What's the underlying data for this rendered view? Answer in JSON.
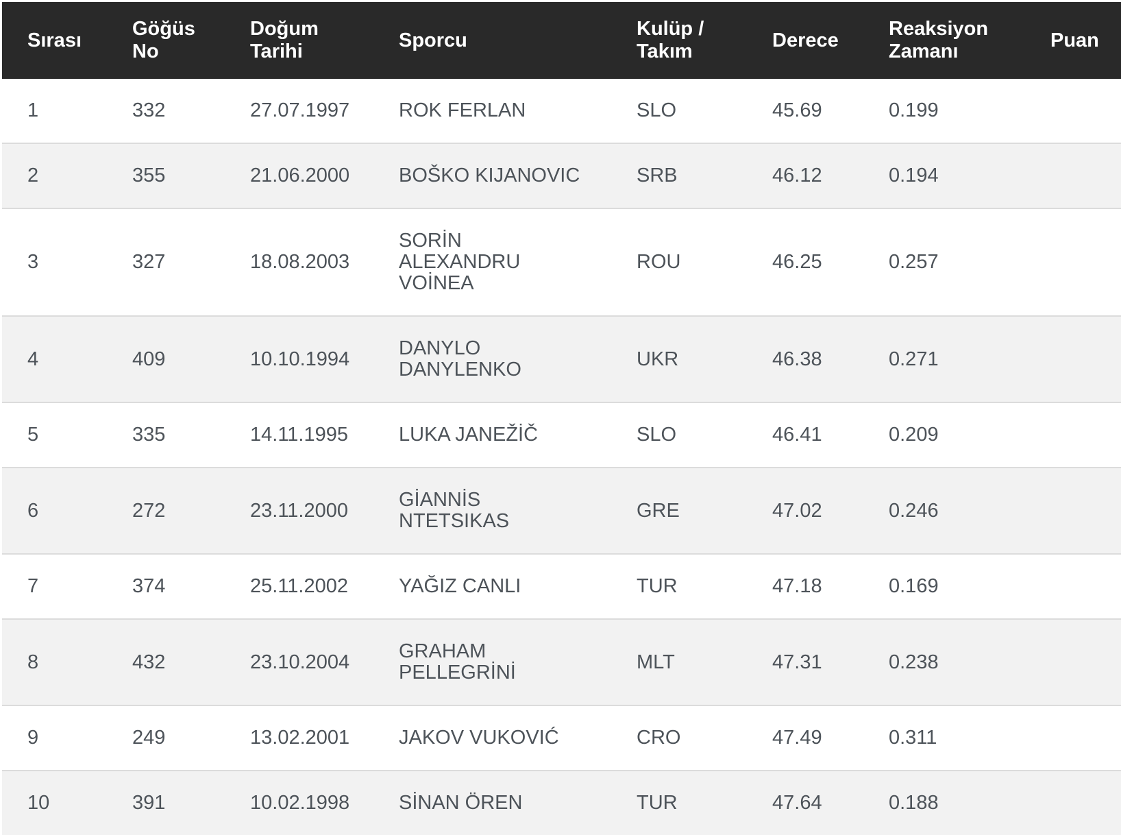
{
  "table": {
    "columns": [
      {
        "key": "sirasi",
        "label": "Sırası"
      },
      {
        "key": "gogus-no",
        "label": "Göğüs\nNo"
      },
      {
        "key": "dogum-tarihi",
        "label": "Doğum\nTarihi"
      },
      {
        "key": "sporcu",
        "label": "Sporcu"
      },
      {
        "key": "kulup-takim",
        "label": "Kulüp /\nTakım"
      },
      {
        "key": "derece",
        "label": "Derece"
      },
      {
        "key": "reaksiyon-zamani",
        "label": "Reaksiyon\nZamanı"
      },
      {
        "key": "puan",
        "label": "Puan"
      }
    ],
    "rows": [
      [
        "1",
        "332",
        "27.07.1997",
        "ROK FERLAN",
        "SLO",
        "45.69",
        "0.199",
        ""
      ],
      [
        "2",
        "355",
        "21.06.2000",
        "BOŠKO KIJANOVIC",
        "SRB",
        "46.12",
        "0.194",
        ""
      ],
      [
        "3",
        "327",
        "18.08.2003",
        "SORİN\nALEXANDRU\nVOİNEA",
        "ROU",
        "46.25",
        "0.257",
        ""
      ],
      [
        "4",
        "409",
        "10.10.1994",
        "DANYLO\nDANYLENKO",
        "UKR",
        "46.38",
        "0.271",
        ""
      ],
      [
        "5",
        "335",
        "14.11.1995",
        "LUKA JANEŽİČ",
        "SLO",
        "46.41",
        "0.209",
        ""
      ],
      [
        "6",
        "272",
        "23.11.2000",
        "GİANNİS\nNTETSIKAS",
        "GRE",
        "47.02",
        "0.246",
        ""
      ],
      [
        "7",
        "374",
        "25.11.2002",
        "YAĞIZ CANLI",
        "TUR",
        "47.18",
        "0.169",
        ""
      ],
      [
        "8",
        "432",
        "23.10.2004",
        "GRAHAM\nPELLEGRİNİ",
        "MLT",
        "47.31",
        "0.238",
        ""
      ],
      [
        "9",
        "249",
        "13.02.2001",
        "JAKOV VUKOVIĆ",
        "CRO",
        "47.49",
        "0.311",
        ""
      ],
      [
        "10",
        "391",
        "10.02.1998",
        "SİNAN ÖREN",
        "TUR",
        "47.64",
        "0.188",
        ""
      ]
    ],
    "colors": {
      "header_bg": "#292929",
      "header_text": "#ffffff",
      "row_text": "#4d5359",
      "row_alt_bg": "#f2f2f2",
      "row_border": "#dcdcdc"
    }
  }
}
